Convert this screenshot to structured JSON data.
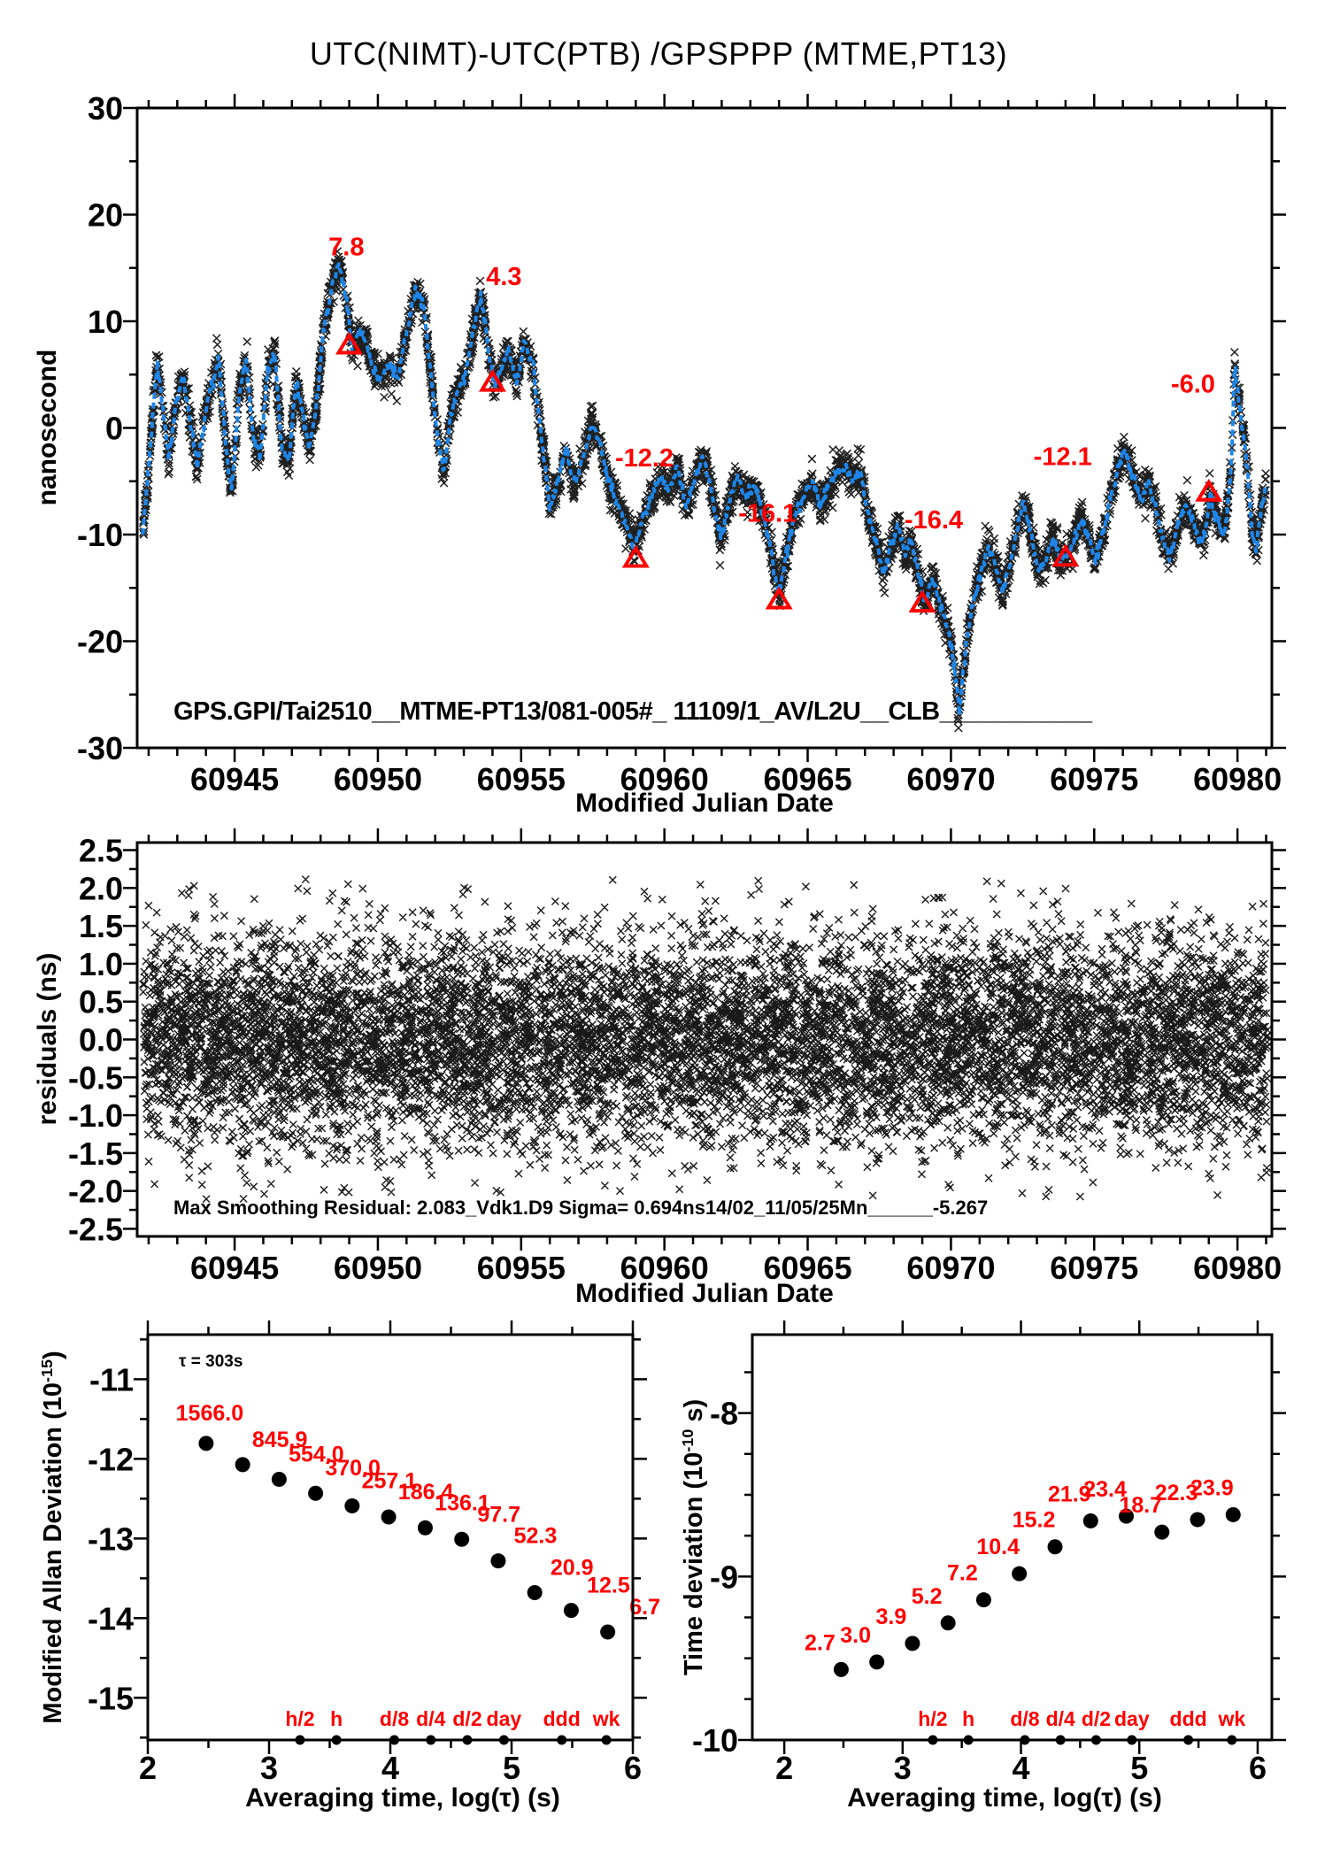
{
  "title": "UTC(NIMT)-UTC(PTB)  /GPSPPP  (MTME,PT13)",
  "colors": {
    "curve": "#1e86e8",
    "annotation": "#ff0000",
    "ink": "#000000",
    "background": "#ffffff"
  },
  "chart_data": [
    {
      "name": "phase-comparison",
      "type": "line",
      "ylabel": "nanosecond",
      "xlabel": "Modified Julian Date",
      "inplot_text": "GPS.GPI/Tai2510__MTME-PT13/081-005#_  11109/1_AV/L2U__CLB___________",
      "xlim": [
        60941.6,
        60981.2
      ],
      "ylim": [
        -30,
        30
      ],
      "xticks": [
        60945,
        60950,
        60955,
        60960,
        60965,
        60970,
        60975,
        60980
      ],
      "xtick_labels": [
        "60945",
        "60950",
        "60955",
        "60960",
        "60965",
        "60970",
        "60975",
        "60980"
      ],
      "xminor_step": 1,
      "yticks": [
        30,
        20,
        10,
        0,
        -10,
        -20,
        -30
      ],
      "ytick_labels": [
        "30",
        "20",
        "10",
        "0",
        "-10",
        "-20",
        "-30"
      ],
      "yminor_step": 5,
      "scatter": {
        "n": 4400,
        "sigma": 0.8,
        "seed": 7
      },
      "curve_jitter": {
        "sigma": 0.3,
        "step": 0.03,
        "seed": 3
      },
      "waypoints": [
        [
          60941.8,
          -10
        ],
        [
          60942.05,
          -2
        ],
        [
          60942.3,
          6.3
        ],
        [
          60942.5,
          2
        ],
        [
          60942.7,
          -3
        ],
        [
          60942.95,
          2.5
        ],
        [
          60943.2,
          5
        ],
        [
          60943.45,
          0.5
        ],
        [
          60943.7,
          -3.5
        ],
        [
          60943.95,
          1
        ],
        [
          60944.2,
          4
        ],
        [
          60944.45,
          6.5
        ],
        [
          60944.7,
          -2
        ],
        [
          60944.9,
          -6
        ],
        [
          60945.15,
          3
        ],
        [
          60945.4,
          6.5
        ],
        [
          60945.65,
          -1
        ],
        [
          60945.9,
          -2.5
        ],
        [
          60946.15,
          5.5
        ],
        [
          60946.4,
          7
        ],
        [
          60946.65,
          -2
        ],
        [
          60946.9,
          -3
        ],
        [
          60947.15,
          4.5
        ],
        [
          60947.4,
          1
        ],
        [
          60947.6,
          -2
        ],
        [
          60947.85,
          2
        ],
        [
          60948.1,
          9
        ],
        [
          60948.4,
          13.5
        ],
        [
          60948.65,
          15.3
        ],
        [
          60948.9,
          12
        ],
        [
          60949.1,
          7.5
        ],
        [
          60949.35,
          9
        ],
        [
          60949.6,
          8
        ],
        [
          60949.85,
          5.5
        ],
        [
          60950.1,
          4.5
        ],
        [
          60950.4,
          6
        ],
        [
          60950.7,
          4.5
        ],
        [
          60951.0,
          9
        ],
        [
          60951.3,
          12.8
        ],
        [
          60951.6,
          11.5
        ],
        [
          60951.85,
          5
        ],
        [
          60952.05,
          0
        ],
        [
          60952.3,
          -4.5
        ],
        [
          60952.55,
          1.5
        ],
        [
          60952.8,
          3.5
        ],
        [
          60953.05,
          5
        ],
        [
          60953.35,
          9.5
        ],
        [
          60953.6,
          12.3
        ],
        [
          60953.85,
          7.5
        ],
        [
          60954.05,
          4
        ],
        [
          60954.3,
          5.5
        ],
        [
          60954.55,
          7.5
        ],
        [
          60954.85,
          4
        ],
        [
          60955.1,
          8.3
        ],
        [
          60955.4,
          6
        ],
        [
          60955.7,
          -0.5
        ],
        [
          60956.0,
          -7.5
        ],
        [
          60956.3,
          -5
        ],
        [
          60956.55,
          -2
        ],
        [
          60956.85,
          -5.5
        ],
        [
          60957.15,
          -3
        ],
        [
          60957.45,
          0.5
        ],
        [
          60957.75,
          -1.5
        ],
        [
          60958.05,
          -5
        ],
        [
          60958.35,
          -7
        ],
        [
          60958.65,
          -9
        ],
        [
          60958.95,
          -11.3
        ],
        [
          60959.25,
          -8.5
        ],
        [
          60959.55,
          -6.5
        ],
        [
          60959.85,
          -4.5
        ],
        [
          60960.15,
          -6
        ],
        [
          60960.45,
          -3.5
        ],
        [
          60960.75,
          -7.5
        ],
        [
          60961.05,
          -5
        ],
        [
          60961.35,
          -2.5
        ],
        [
          60961.65,
          -6
        ],
        [
          60961.95,
          -10.5
        ],
        [
          60962.25,
          -7
        ],
        [
          60962.55,
          -4.5
        ],
        [
          60962.85,
          -6.5
        ],
        [
          60963.15,
          -5.5
        ],
        [
          60963.45,
          -8
        ],
        [
          60963.75,
          -12
        ],
        [
          60964.0,
          -15.8
        ],
        [
          60964.25,
          -12
        ],
        [
          60964.55,
          -8
        ],
        [
          60964.85,
          -6.5
        ],
        [
          60965.15,
          -5
        ],
        [
          60965.45,
          -7.5
        ],
        [
          60965.75,
          -5.5
        ],
        [
          60966.05,
          -4
        ],
        [
          60966.35,
          -3.5
        ],
        [
          60966.6,
          -5
        ],
        [
          60966.85,
          -4
        ],
        [
          60967.1,
          -8
        ],
        [
          60967.4,
          -11
        ],
        [
          60967.65,
          -13.5
        ],
        [
          60967.9,
          -11
        ],
        [
          60968.15,
          -9
        ],
        [
          60968.4,
          -12
        ],
        [
          60968.6,
          -10.5
        ],
        [
          60968.85,
          -13.5
        ],
        [
          60969.1,
          -16.5
        ],
        [
          60969.35,
          -14
        ],
        [
          60969.6,
          -16.5
        ],
        [
          60969.85,
          -18.5
        ],
        [
          60970.05,
          -21
        ],
        [
          60970.3,
          -26.5
        ],
        [
          60970.55,
          -20
        ],
        [
          60970.8,
          -16
        ],
        [
          60971.05,
          -13.5
        ],
        [
          60971.3,
          -11
        ],
        [
          60971.55,
          -13
        ],
        [
          60971.8,
          -15.5
        ],
        [
          60972.05,
          -13
        ],
        [
          60972.3,
          -9.5
        ],
        [
          60972.55,
          -7
        ],
        [
          60972.8,
          -10
        ],
        [
          60973.05,
          -13.5
        ],
        [
          60973.3,
          -12.5
        ],
        [
          60973.55,
          -10
        ],
        [
          60973.8,
          -12.5
        ],
        [
          60974.05,
          -12
        ],
        [
          60974.3,
          -10.5
        ],
        [
          60974.55,
          -8.5
        ],
        [
          60974.8,
          -10.5
        ],
        [
          60975.05,
          -12.5
        ],
        [
          60975.3,
          -10
        ],
        [
          60975.55,
          -7
        ],
        [
          60975.8,
          -4
        ],
        [
          60976.05,
          -2
        ],
        [
          60976.35,
          -4.5
        ],
        [
          60976.65,
          -7
        ],
        [
          60976.9,
          -5
        ],
        [
          60977.15,
          -7.5
        ],
        [
          60977.4,
          -10.5
        ],
        [
          60977.65,
          -12
        ],
        [
          60977.9,
          -9.5
        ],
        [
          60978.15,
          -7
        ],
        [
          60978.4,
          -8.5
        ],
        [
          60978.65,
          -10.5
        ],
        [
          60978.85,
          -10
        ],
        [
          60979.05,
          -6
        ],
        [
          60979.2,
          -8
        ],
        [
          60979.35,
          -9
        ],
        [
          60979.55,
          -10
        ],
        [
          60979.7,
          -6
        ],
        [
          60979.8,
          -2.5
        ],
        [
          60979.9,
          5.8
        ],
        [
          60980.05,
          2.5
        ],
        [
          60980.2,
          -0.5
        ],
        [
          60980.35,
          -4
        ],
        [
          60980.5,
          -9.5
        ],
        [
          60980.65,
          -11.5
        ],
        [
          60980.8,
          -8
        ],
        [
          60981.0,
          -5
        ]
      ],
      "annotations": [
        {
          "x": 60949,
          "y": 7.8,
          "label": "7.8",
          "lx": 60948.9,
          "ly": 16.2
        },
        {
          "x": 60954,
          "y": 4.3,
          "label": "4.3",
          "lx": 60954.4,
          "ly": 13.4
        },
        {
          "x": 60959,
          "y": -12.2,
          "label": "-12.2",
          "lx": 60959.3,
          "ly": -3.6
        },
        {
          "x": 60964,
          "y": -16.1,
          "label": "-16.1",
          "lx": 60963.6,
          "ly": -8.8
        },
        {
          "x": 60969,
          "y": -16.4,
          "label": "-16.4",
          "lx": 60969.4,
          "ly": -9.4
        },
        {
          "x": 60974,
          "y": -12.1,
          "label": "-12.1",
          "lx": 60973.9,
          "ly": -3.5
        },
        {
          "x": 60979,
          "y": -6.0,
          "label": "-6.0",
          "lx": 60978.45,
          "ly": 3.3
        }
      ]
    },
    {
      "name": "residuals",
      "type": "scatter",
      "ylabel": "residuals (ns)",
      "xlabel": "Modified Julian Date",
      "inplot_text": "Max Smoothing Residual: 2.083_Vdk1.D9  Sigma= 0.694ns14/02_11/05/25Mn______-5.267",
      "xlim": [
        60941.6,
        60981.2
      ],
      "ylim": [
        -2.6,
        2.6
      ],
      "xticks": [
        60945,
        60950,
        60955,
        60960,
        60965,
        60970,
        60975,
        60980
      ],
      "xtick_labels": [
        "60945",
        "60950",
        "60955",
        "60960",
        "60965",
        "60970",
        "60975",
        "60980"
      ],
      "xminor_step": 1,
      "yticks": [
        2.5,
        2.0,
        1.5,
        1.0,
        0.5,
        0.0,
        -0.5,
        -1.0,
        -1.5,
        -2.0,
        -2.5
      ],
      "ytick_labels": [
        "2.5",
        "2.0",
        "1.5",
        "1.0",
        "0.5",
        "0.0",
        "-0.5",
        "-1.0",
        "-1.5",
        "-2.0",
        "-2.5"
      ],
      "yminor_step": 0.25,
      "scatter": {
        "n": 9500,
        "sigma": 0.72,
        "clip": 2.12,
        "seed": 11
      }
    },
    {
      "name": "mdev",
      "type": "scatter-labeled",
      "ylabel_parts": {
        "main": "Modified Allan Deviation (10",
        "sup": "-15",
        "end": ")"
      },
      "xlabel": "Averaging time, log(τ) (s)",
      "note": "τ = 303s",
      "unit_exponent": -15,
      "xlim": [
        2.0,
        6.0
      ],
      "ylim": [
        -15.53,
        -10.44
      ],
      "xticks": [
        2,
        3,
        4,
        5,
        6
      ],
      "xtick_labels": [
        "2",
        "3",
        "4",
        "5",
        "6"
      ],
      "xminor_step": 0.5,
      "yticks": [
        -11,
        -12,
        -13,
        -14,
        -15
      ],
      "ytick_labels": [
        "-11",
        "-12",
        "-13",
        "-14",
        "-15"
      ],
      "yminor_step": 0.5,
      "x_log": [
        2.481,
        2.782,
        3.083,
        3.384,
        3.685,
        3.986,
        4.288,
        4.589,
        4.89,
        5.191,
        5.492,
        5.793
      ],
      "values": [
        1566.0,
        845.9,
        554.0,
        370.0,
        257.1,
        186.4,
        136.1,
        97.7,
        52.3,
        20.9,
        12.5,
        6.7
      ],
      "value_labels": [
        "1566.0",
        "845.9",
        "554.0",
        "370.0",
        "257.1",
        "186.4",
        "136.1",
        "97.7",
        "52.3",
        "20.9",
        "12.5",
        "6.7"
      ],
      "tau_marks": [
        {
          "label": "h/2",
          "log": 3.255
        },
        {
          "label": "h",
          "log": 3.556
        },
        {
          "label": "d/8",
          "log": 4.033
        },
        {
          "label": "d/4",
          "log": 4.334
        },
        {
          "label": "d/2",
          "log": 4.635
        },
        {
          "label": "day",
          "log": 4.937
        },
        {
          "label": "ddd",
          "log": 5.414
        },
        {
          "label": "wk",
          "log": 5.782
        }
      ]
    },
    {
      "name": "tdev",
      "type": "scatter-labeled",
      "ylabel_parts": {
        "main": "Time deviation (10",
        "sup": "-10",
        "end": " s)"
      },
      "xlabel": "Averaging time, log(τ) (s)",
      "unit_exponent": -10,
      "xlim": [
        1.73,
        6.12
      ],
      "ylim": [
        -10,
        -7.52
      ],
      "xticks": [
        2,
        3,
        4,
        5,
        6
      ],
      "xtick_labels": [
        "2",
        "3",
        "4",
        "5",
        "6"
      ],
      "xminor_step": 0.5,
      "yticks": [
        -8,
        -9,
        -10
      ],
      "ytick_labels": [
        "-8",
        "-9",
        "-10"
      ],
      "yminor_step": 0.25,
      "x_log": [
        2.481,
        2.782,
        3.083,
        3.384,
        3.685,
        3.986,
        4.288,
        4.589,
        4.89,
        5.191,
        5.492,
        5.793
      ],
      "values": [
        2.7,
        3.0,
        3.9,
        5.2,
        7.2,
        10.4,
        15.2,
        21.9,
        23.4,
        18.7,
        22.3,
        23.9
      ],
      "value_labels": [
        "2.7",
        "3.0",
        "3.9",
        "5.2",
        "7.2",
        "10.4",
        "15.2",
        "21.9",
        "23.4",
        "18.7",
        "22.3",
        "23.9"
      ],
      "tau_marks": [
        {
          "label": "h/2",
          "log": 3.255
        },
        {
          "label": "h",
          "log": 3.556
        },
        {
          "label": "d/8",
          "log": 4.033
        },
        {
          "label": "d/4",
          "log": 4.334
        },
        {
          "label": "d/2",
          "log": 4.635
        },
        {
          "label": "day",
          "log": 4.937
        },
        {
          "label": "ddd",
          "log": 5.414
        },
        {
          "label": "wk",
          "log": 5.782
        }
      ]
    }
  ]
}
